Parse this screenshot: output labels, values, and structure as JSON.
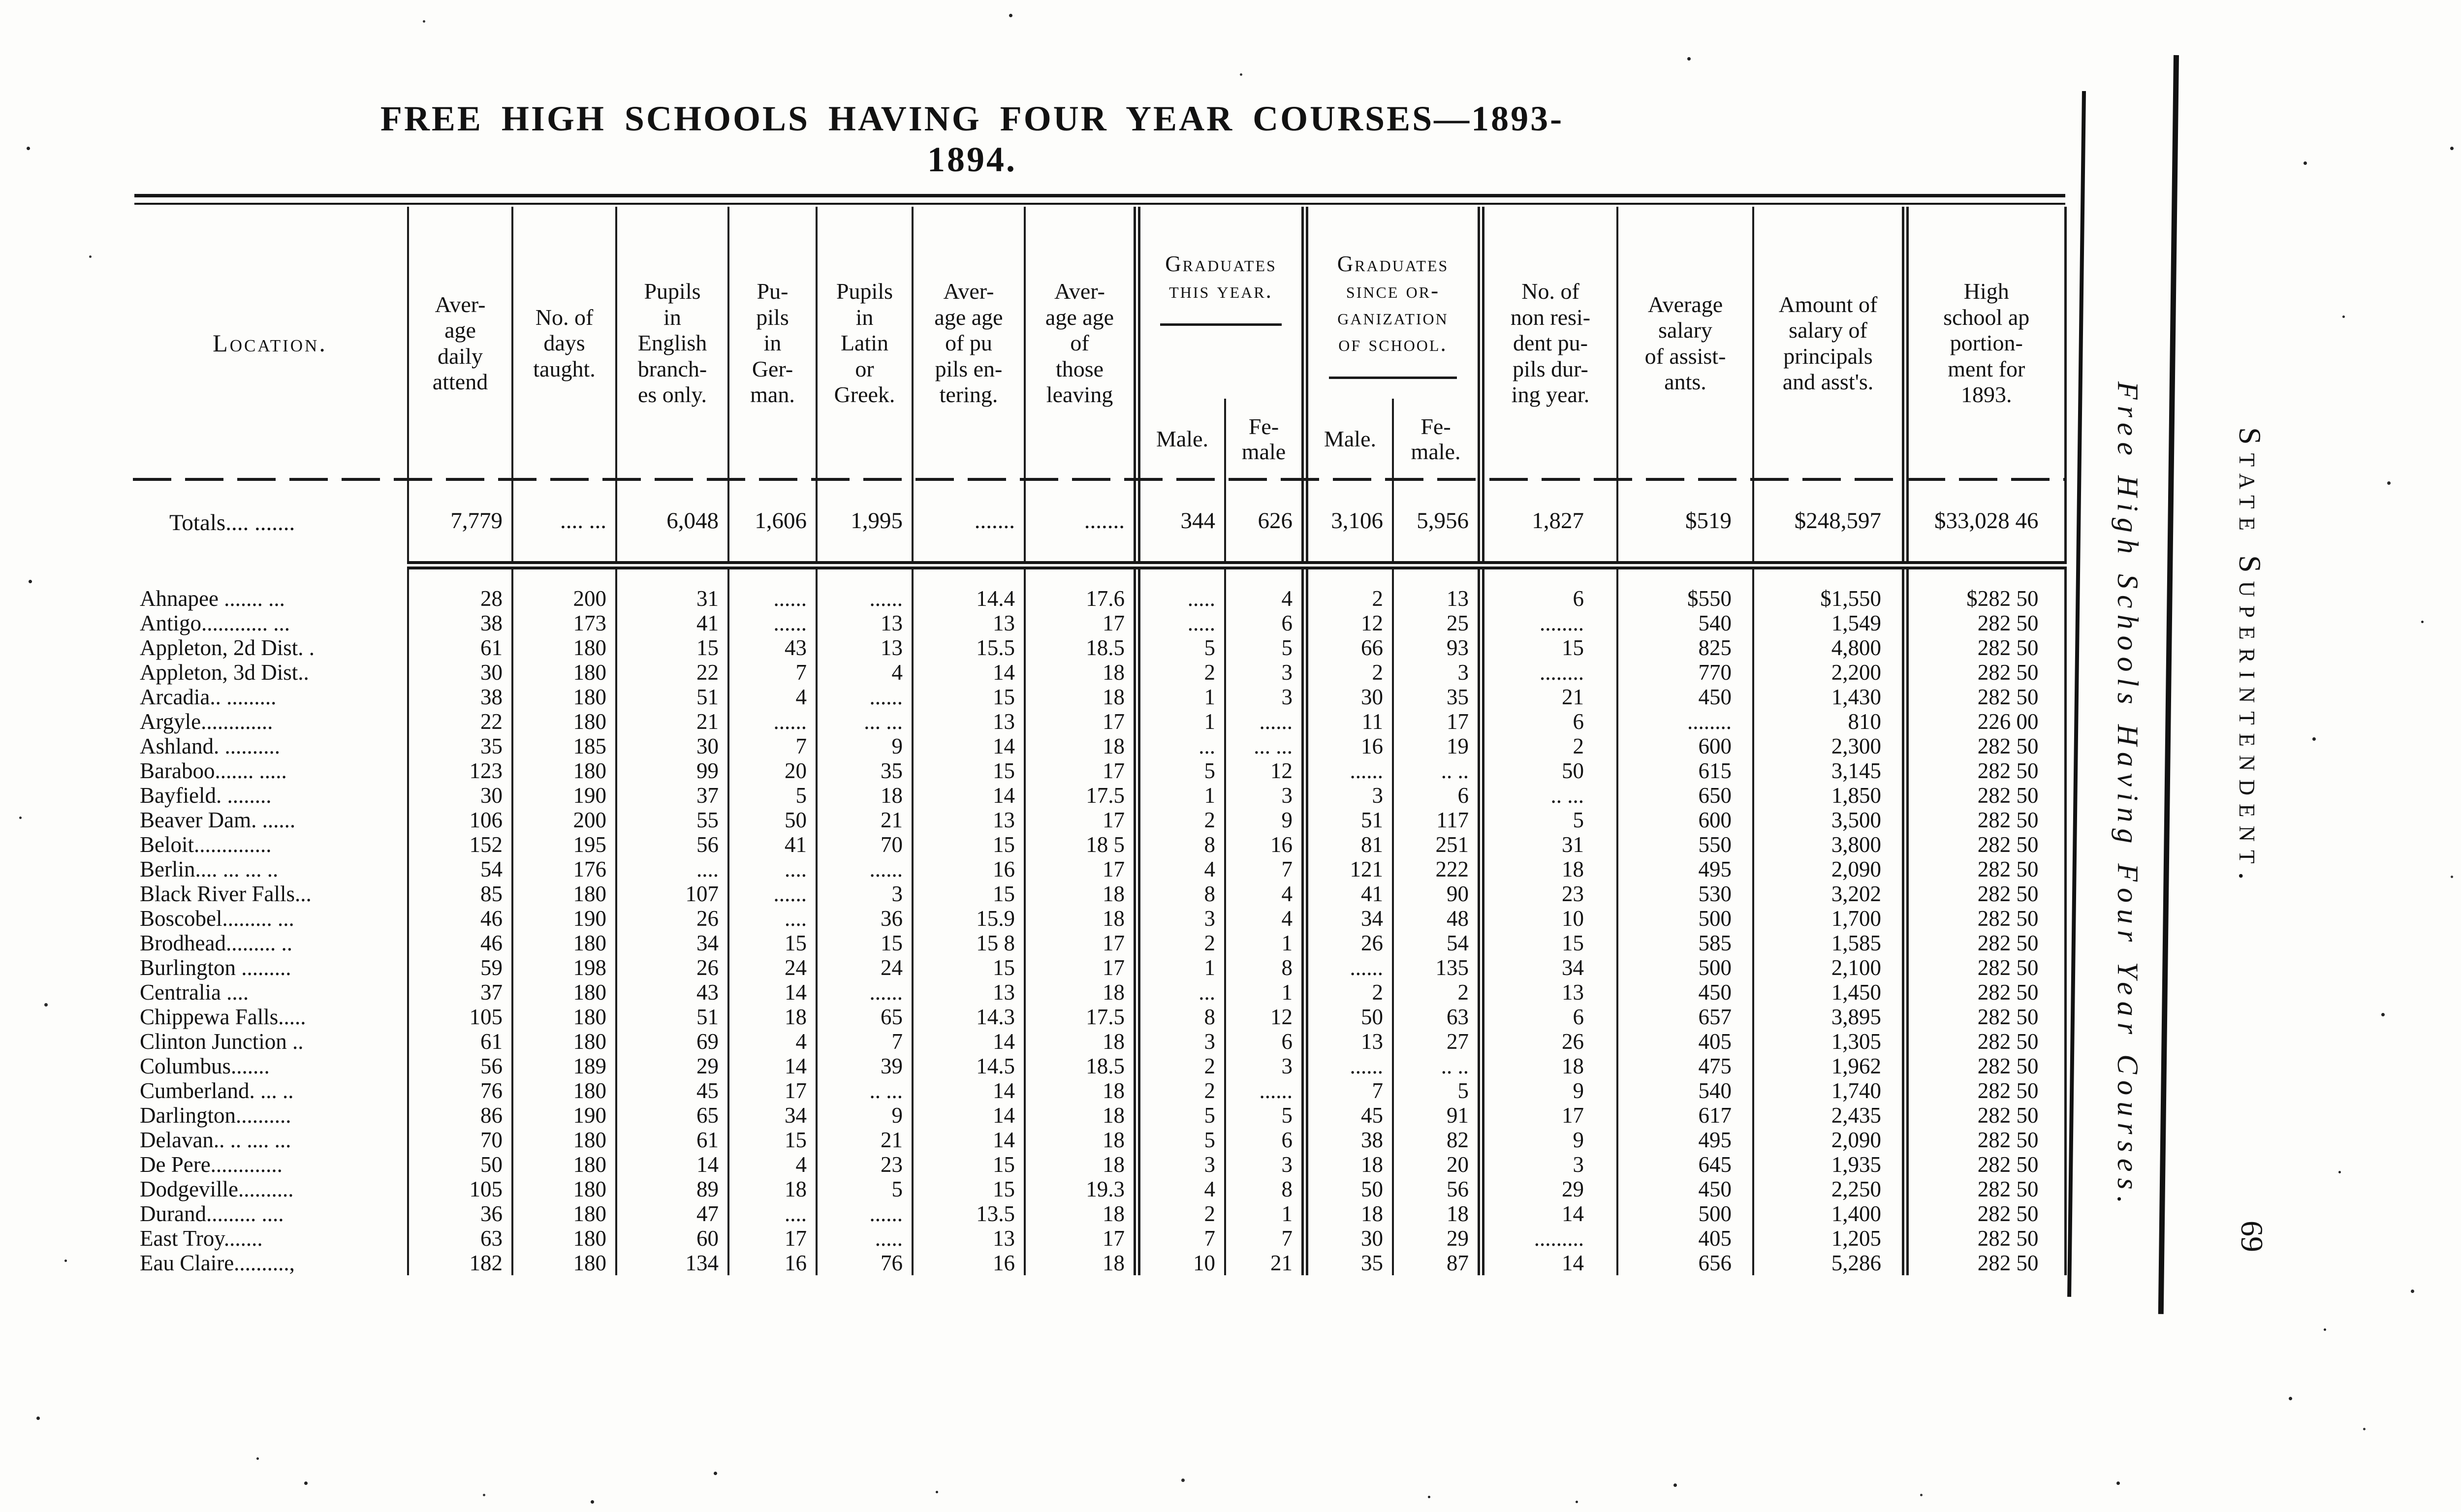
{
  "page": {
    "title": "FREE HIGH SCHOOLS HAVING FOUR YEAR COURSES—1893-1894.",
    "side_caption": "Free High Schools Having Four Year Courses.",
    "side_heading": "State Superintendent.",
    "page_number": "69"
  },
  "table": {
    "col_keys": [
      "loc",
      "attend",
      "days",
      "eng",
      "ger",
      "lat",
      "enter",
      "leave",
      "gm",
      "gf",
      "sm",
      "sf",
      "nonres",
      "sal",
      "prin",
      "app"
    ],
    "headers": {
      "loc": "Location.",
      "attend": "Aver-\nage\ndaily\nattend",
      "days": "No. of\ndays\ntaught.",
      "eng": "Pupils\nin\nEnglish\nbranch-\nes only.",
      "ger": "Pu-\npils\nin\nGer-\nman.",
      "lat": "Pupils\nin\nLatin\nor\nGreek.",
      "enter": "Aver-\nage age\nof pu\npils en-\ntering.",
      "leave": "Aver-\nage age\nof\nthose\nleaving",
      "grad_group": "Graduates\nthis year.",
      "since_group": "Graduates\nsince or-\nganization\nof school.",
      "male1": "Male.",
      "female1": "Fe-\nmale",
      "male2": "Male.",
      "female2": "Fe-\nmale.",
      "nonres": "No. of\nnon resi-\ndent pu-\npils dur-\ning year.",
      "sal": "Average\nsalary\nof assist-\nants.",
      "prin": "Amount of\nsalary of\nprincipals\nand asst's.",
      "app": "High\nschool ap\nportion-\nment for\n1893."
    },
    "totals": {
      "loc": "Totals.... .......",
      "attend": "7,779",
      "days": ".... ...",
      "eng": "6,048",
      "ger": "1,606",
      "lat": "1,995",
      "enter": ".......",
      "leave": ".......",
      "gm": "344",
      "gf": "626",
      "sm": "3,106",
      "sf": "5,956",
      "nonres": "1,827",
      "sal": "$519",
      "prin": "$248,597",
      "app": "$33,028 46"
    },
    "rows": [
      {
        "loc": "Ahnapee ....... ...",
        "attend": "28",
        "days": "200",
        "eng": "31",
        "ger": "......",
        "lat": "......",
        "enter": "14.4",
        "leave": "17.6",
        "gm": ".....",
        "gf": "4",
        "sm": "2",
        "sf": "13",
        "nonres": "6",
        "sal": "$550",
        "prin": "$1,550",
        "app": "$282 50"
      },
      {
        "loc": "Antigo............ ...",
        "attend": "38",
        "days": "173",
        "eng": "41",
        "ger": "......",
        "lat": "13",
        "enter": "13",
        "leave": "17",
        "gm": ".....",
        "gf": "6",
        "sm": "12",
        "sf": "25",
        "nonres": "........",
        "sal": "540",
        "prin": "1,549",
        "app": "282 50"
      },
      {
        "loc": "Appleton, 2d Dist. .",
        "attend": "61",
        "days": "180",
        "eng": "15",
        "ger": "43",
        "lat": "13",
        "enter": "15.5",
        "leave": "18.5",
        "gm": "5",
        "gf": "5",
        "sm": "66",
        "sf": "93",
        "nonres": "15",
        "sal": "825",
        "prin": "4,800",
        "app": "282 50"
      },
      {
        "loc": "Appleton, 3d Dist..",
        "attend": "30",
        "days": "180",
        "eng": "22",
        "ger": "7",
        "lat": "4",
        "enter": "14",
        "leave": "18",
        "gm": "2",
        "gf": "3",
        "sm": "2",
        "sf": "3",
        "nonres": "........",
        "sal": "770",
        "prin": "2,200",
        "app": "282 50"
      },
      {
        "loc": "Arcadia.. .........",
        "attend": "38",
        "days": "180",
        "eng": "51",
        "ger": "4",
        "lat": "......",
        "enter": "15",
        "leave": "18",
        "gm": "1",
        "gf": "3",
        "sm": "30",
        "sf": "35",
        "nonres": "21",
        "sal": "450",
        "prin": "1,430",
        "app": "282 50"
      },
      {
        "loc": "Argyle.............",
        "attend": "22",
        "days": "180",
        "eng": "21",
        "ger": "......",
        "lat": "... ...",
        "enter": "13",
        "leave": "17",
        "gm": "1",
        "gf": "......",
        "sm": "11",
        "sf": "17",
        "nonres": "6",
        "sal": "........",
        "prin": "810",
        "app": "226 00"
      },
      {
        "loc": "Ashland. ..........",
        "attend": "35",
        "days": "185",
        "eng": "30",
        "ger": "7",
        "lat": "9",
        "enter": "14",
        "leave": "18",
        "gm": "...",
        "gf": "... ...",
        "sm": "16",
        "sf": "19",
        "nonres": "2",
        "sal": "600",
        "prin": "2,300",
        "app": "282 50"
      },
      {
        "loc": "Baraboo....... .....",
        "attend": "123",
        "days": "180",
        "eng": "99",
        "ger": "20",
        "lat": "35",
        "enter": "15",
        "leave": "17",
        "gm": "5",
        "gf": "12",
        "sm": "......",
        "sf": ".. ..",
        "nonres": "50",
        "sal": "615",
        "prin": "3,145",
        "app": "282 50"
      },
      {
        "loc": "Bayfield. ........",
        "attend": "30",
        "days": "190",
        "eng": "37",
        "ger": "5",
        "lat": "18",
        "enter": "14",
        "leave": "17.5",
        "gm": "1",
        "gf": "3",
        "sm": "3",
        "sf": "6",
        "nonres": ".. ...",
        "sal": "650",
        "prin": "1,850",
        "app": "282 50"
      },
      {
        "loc": "Beaver Dam. ......",
        "attend": "106",
        "days": "200",
        "eng": "55",
        "ger": "50",
        "lat": "21",
        "enter": "13",
        "leave": "17",
        "gm": "2",
        "gf": "9",
        "sm": "51",
        "sf": "117",
        "nonres": "5",
        "sal": "600",
        "prin": "3,500",
        "app": "282 50"
      },
      {
        "loc": "Beloit..............",
        "attend": "152",
        "days": "195",
        "eng": "56",
        "ger": "41",
        "lat": "70",
        "enter": "15",
        "leave": "18 5",
        "gm": "8",
        "gf": "16",
        "sm": "81",
        "sf": "251",
        "nonres": "31",
        "sal": "550",
        "prin": "3,800",
        "app": "282 50"
      },
      {
        "loc": "Berlin.... ... ... ..",
        "attend": "54",
        "days": "176",
        "eng": "....",
        "ger": "....",
        "lat": "......",
        "enter": "16",
        "leave": "17",
        "gm": "4",
        "gf": "7",
        "sm": "121",
        "sf": "222",
        "nonres": "18",
        "sal": "495",
        "prin": "2,090",
        "app": "282 50"
      },
      {
        "loc": "Black River Falls...",
        "attend": "85",
        "days": "180",
        "eng": "107",
        "ger": "......",
        "lat": "3",
        "enter": "15",
        "leave": "18",
        "gm": "8",
        "gf": "4",
        "sm": "41",
        "sf": "90",
        "nonres": "23",
        "sal": "530",
        "prin": "3,202",
        "app": "282 50"
      },
      {
        "loc": "Boscobel......... ...",
        "attend": "46",
        "days": "190",
        "eng": "26",
        "ger": "....",
        "lat": "36",
        "enter": "15.9",
        "leave": "18",
        "gm": "3",
        "gf": "4",
        "sm": "34",
        "sf": "48",
        "nonres": "10",
        "sal": "500",
        "prin": "1,700",
        "app": "282 50"
      },
      {
        "loc": "Brodhead......... ..",
        "attend": "46",
        "days": "180",
        "eng": "34",
        "ger": "15",
        "lat": "15",
        "enter": "15 8",
        "leave": "17",
        "gm": "2",
        "gf": "1",
        "sm": "26",
        "sf": "54",
        "nonres": "15",
        "sal": "585",
        "prin": "1,585",
        "app": "282 50"
      },
      {
        "loc": "Burlington .........",
        "attend": "59",
        "days": "198",
        "eng": "26",
        "ger": "24",
        "lat": "24",
        "enter": "15",
        "leave": "17",
        "gm": "1",
        "gf": "8",
        "sm": "......",
        "sf": "135",
        "nonres": "34",
        "sal": "500",
        "prin": "2,100",
        "app": "282 50"
      },
      {
        "loc": "Centralia ....",
        "attend": "37",
        "days": "180",
        "eng": "43",
        "ger": "14",
        "lat": "......",
        "enter": "13",
        "leave": "18",
        "gm": "...",
        "gf": "1",
        "sm": "2",
        "sf": "2",
        "nonres": "13",
        "sal": "450",
        "prin": "1,450",
        "app": "282 50"
      },
      {
        "loc": "Chippewa Falls.....",
        "attend": "105",
        "days": "180",
        "eng": "51",
        "ger": "18",
        "lat": "65",
        "enter": "14.3",
        "leave": "17.5",
        "gm": "8",
        "gf": "12",
        "sm": "50",
        "sf": "63",
        "nonres": "6",
        "sal": "657",
        "prin": "3,895",
        "app": "282 50"
      },
      {
        "loc": "Clinton Junction ..",
        "attend": "61",
        "days": "180",
        "eng": "69",
        "ger": "4",
        "lat": "7",
        "enter": "14",
        "leave": "18",
        "gm": "3",
        "gf": "6",
        "sm": "13",
        "sf": "27",
        "nonres": "26",
        "sal": "405",
        "prin": "1,305",
        "app": "282 50"
      },
      {
        "loc": "Columbus.......",
        "attend": "56",
        "days": "189",
        "eng": "29",
        "ger": "14",
        "lat": "39",
        "enter": "14.5",
        "leave": "18.5",
        "gm": "2",
        "gf": "3",
        "sm": "......",
        "sf": ".. ..",
        "nonres": "18",
        "sal": "475",
        "prin": "1,962",
        "app": "282 50"
      },
      {
        "loc": "Cumberland. ... ..",
        "attend": "76",
        "days": "180",
        "eng": "45",
        "ger": "17",
        "lat": ".. ...",
        "enter": "14",
        "leave": "18",
        "gm": "2",
        "gf": "......",
        "sm": "7",
        "sf": "5",
        "nonres": "9",
        "sal": "540",
        "prin": "1,740",
        "app": "282 50"
      },
      {
        "loc": "Darlington..........",
        "attend": "86",
        "days": "190",
        "eng": "65",
        "ger": "34",
        "lat": "9",
        "enter": "14",
        "leave": "18",
        "gm": "5",
        "gf": "5",
        "sm": "45",
        "sf": "91",
        "nonres": "17",
        "sal": "617",
        "prin": "2,435",
        "app": "282 50"
      },
      {
        "loc": "Delavan.. .. .... ...",
        "attend": "70",
        "days": "180",
        "eng": "61",
        "ger": "15",
        "lat": "21",
        "enter": "14",
        "leave": "18",
        "gm": "5",
        "gf": "6",
        "sm": "38",
        "sf": "82",
        "nonres": "9",
        "sal": "495",
        "prin": "2,090",
        "app": "282 50"
      },
      {
        "loc": "De Pere.............",
        "attend": "50",
        "days": "180",
        "eng": "14",
        "ger": "4",
        "lat": "23",
        "enter": "15",
        "leave": "18",
        "gm": "3",
        "gf": "3",
        "sm": "18",
        "sf": "20",
        "nonres": "3",
        "sal": "645",
        "prin": "1,935",
        "app": "282 50"
      },
      {
        "loc": "Dodgeville..........",
        "attend": "105",
        "days": "180",
        "eng": "89",
        "ger": "18",
        "lat": "5",
        "enter": "15",
        "leave": "19.3",
        "gm": "4",
        "gf": "8",
        "sm": "50",
        "sf": "56",
        "nonres": "29",
        "sal": "450",
        "prin": "2,250",
        "app": "282 50"
      },
      {
        "loc": "Durand......... ....",
        "attend": "36",
        "days": "180",
        "eng": "47",
        "ger": "....",
        "lat": "......",
        "enter": "13.5",
        "leave": "18",
        "gm": "2",
        "gf": "1",
        "sm": "18",
        "sf": "18",
        "nonres": "14",
        "sal": "500",
        "prin": "1,400",
        "app": "282 50"
      },
      {
        "loc": "East Troy.......",
        "attend": "63",
        "days": "180",
        "eng": "60",
        "ger": "17",
        "lat": ".....",
        "enter": "13",
        "leave": "17",
        "gm": "7",
        "gf": "7",
        "sm": "30",
        "sf": "29",
        "nonres": ".........",
        "sal": "405",
        "prin": "1,205",
        "app": "282 50"
      },
      {
        "loc": "Eau Claire..........,",
        "attend": "182",
        "days": "180",
        "eng": "134",
        "ger": "16",
        "lat": "76",
        "enter": "16",
        "leave": "18",
        "gm": "10",
        "gf": "21",
        "sm": "35",
        "sf": "87",
        "nonres": "14",
        "sal": "656",
        "prin": "5,286",
        "app": "282 50"
      }
    ]
  }
}
